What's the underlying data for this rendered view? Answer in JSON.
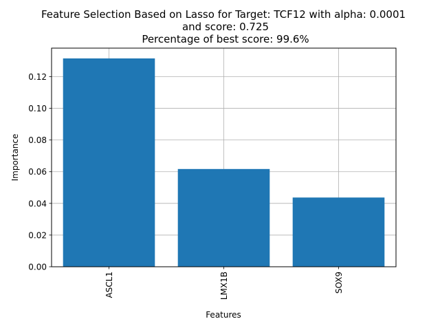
{
  "chart_data": {
    "type": "bar",
    "title_lines": [
      "Feature Selection Based on Lasso for Target: TCF12 with alpha: 0.0001",
      "and score: 0.725",
      "Percentage of best score: 99.6%"
    ],
    "xlabel": "Features",
    "ylabel": "Importance",
    "categories": [
      "ASCL1",
      "LMX1B",
      "SOX9"
    ],
    "values": [
      0.1315,
      0.0617,
      0.0437
    ],
    "ylim": [
      0,
      0.138
    ],
    "yticks": [
      "0.00",
      "0.02",
      "0.04",
      "0.06",
      "0.08",
      "0.10",
      "0.12"
    ],
    "grid": true,
    "bar_color": "#1f77b4"
  }
}
